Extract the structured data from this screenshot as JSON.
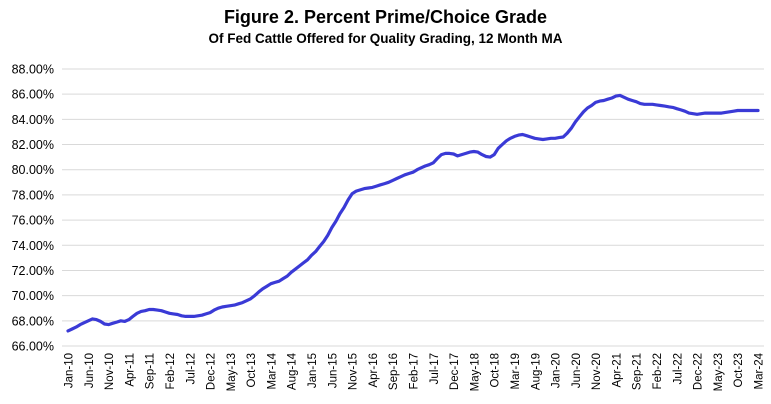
{
  "header": {
    "title": "Figure 2. Percent Prime/Choice Grade",
    "subtitle": "Of Fed Cattle Offered for Quality Grading, 12 Month MA"
  },
  "colors": {
    "line": "#3a3ad6",
    "grid": "#d9d9d9",
    "text": "#000000",
    "background": "#ffffff"
  },
  "chart_data": {
    "type": "line",
    "title": "Figure 2. Percent Prime/Choice Grade",
    "subtitle": "Of Fed Cattle Offered for Quality Grading, 12 Month MA",
    "grid": true,
    "legend": false,
    "ylim": [
      66,
      88
    ],
    "y_tick_step": 2,
    "y_tick_labels": [
      "88.00%",
      "86.00%",
      "84.00%",
      "82.00%",
      "80.00%",
      "78.00%",
      "76.00%",
      "74.00%",
      "72.00%",
      "70.00%",
      "68.00%",
      "66.00%"
    ],
    "x_tick_interval_months": 5,
    "x_tick_labels": [
      "Jan-10",
      "Jun-10",
      "Nov-10",
      "Apr-11",
      "Sep-11",
      "Feb-12",
      "Jul-12",
      "Dec-12",
      "May-13",
      "Oct-13",
      "Mar-14",
      "Aug-14",
      "Jan-15",
      "Jun-15",
      "Nov-15",
      "Apr-16",
      "Sep-16",
      "Feb-17",
      "Jul-17",
      "Dec-17",
      "May-18",
      "Oct-18",
      "Mar-19",
      "Aug-19",
      "Jan-20",
      "Jun-20",
      "Nov-20",
      "Apr-21",
      "Sep-21",
      "Feb-22",
      "Jul-22",
      "Dec-22",
      "May-23",
      "Oct-23",
      "Mar-24"
    ],
    "series": [
      {
        "name": "Percent Prime/Choice of Fed Cattle Offered for Quality Grading, 12 Month MA",
        "start_month": "Jan-10",
        "end_month": "Mar-24",
        "monthly_values": [
          67.2,
          67.35,
          67.5,
          67.7,
          67.85,
          68.0,
          68.15,
          68.1,
          67.95,
          67.75,
          67.7,
          67.8,
          67.9,
          68.0,
          67.95,
          68.1,
          68.35,
          68.6,
          68.75,
          68.8,
          68.9,
          68.9,
          68.85,
          68.8,
          68.7,
          68.6,
          68.55,
          68.5,
          68.4,
          68.35,
          68.35,
          68.35,
          68.4,
          68.45,
          68.55,
          68.65,
          68.85,
          69.0,
          69.1,
          69.15,
          69.2,
          69.25,
          69.35,
          69.45,
          69.6,
          69.75,
          70.0,
          70.3,
          70.55,
          70.75,
          70.95,
          71.05,
          71.15,
          71.35,
          71.55,
          71.85,
          72.1,
          72.35,
          72.6,
          72.85,
          73.2,
          73.5,
          73.9,
          74.3,
          74.8,
          75.4,
          75.9,
          76.5,
          77.0,
          77.6,
          78.1,
          78.3,
          78.4,
          78.5,
          78.55,
          78.6,
          78.7,
          78.8,
          78.9,
          79.0,
          79.15,
          79.3,
          79.45,
          79.6,
          79.7,
          79.8,
          80.0,
          80.15,
          80.3,
          80.4,
          80.55,
          80.9,
          81.2,
          81.3,
          81.3,
          81.25,
          81.1,
          81.2,
          81.3,
          81.4,
          81.45,
          81.4,
          81.2,
          81.05,
          81.0,
          81.2,
          81.7,
          82.0,
          82.3,
          82.5,
          82.65,
          82.75,
          82.8,
          82.7,
          82.6,
          82.5,
          82.45,
          82.4,
          82.45,
          82.5,
          82.5,
          82.55,
          82.6,
          82.9,
          83.3,
          83.8,
          84.2,
          84.6,
          84.9,
          85.1,
          85.35,
          85.45,
          85.5,
          85.6,
          85.7,
          85.85,
          85.9,
          85.75,
          85.6,
          85.5,
          85.4,
          85.25,
          85.2,
          85.2,
          85.2,
          85.15,
          85.1,
          85.05,
          85.0,
          84.95,
          84.85,
          84.75,
          84.65,
          84.5,
          84.45,
          84.4,
          84.45,
          84.5,
          84.5,
          84.5,
          84.5,
          84.5,
          84.55,
          84.6,
          84.65,
          84.7,
          84.7,
          84.7,
          84.7,
          84.7,
          84.7
        ]
      }
    ]
  }
}
